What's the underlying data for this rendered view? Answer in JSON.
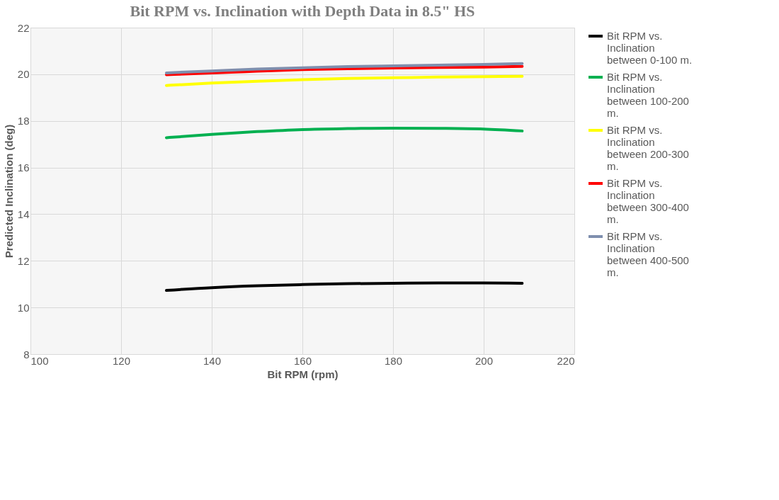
{
  "chart_data": {
    "type": "line",
    "title": "Bit RPM vs. Inclination with Depth Data in 8.5\" HS",
    "xlabel": "Bit RPM (rpm)",
    "ylabel": "Predicted Inclination (deg)",
    "x": [
      130,
      140,
      150,
      160,
      170,
      180,
      190,
      200,
      208.5
    ],
    "series": [
      {
        "name": "Bit RPM vs. Inclination between 0-100 m.",
        "color": "#000000",
        "values": [
          10.73,
          10.85,
          10.93,
          10.98,
          11.02,
          11.04,
          11.05,
          11.05,
          11.04
        ]
      },
      {
        "name": "Bit RPM vs. Inclination between 100-200 m.",
        "color": "#00b050",
        "values": [
          17.28,
          17.42,
          17.54,
          17.63,
          17.67,
          17.69,
          17.68,
          17.65,
          17.57
        ]
      },
      {
        "name": "Bit RPM vs. Inclination between 200-300 m.",
        "color": "#ffff00",
        "values": [
          19.52,
          19.62,
          19.7,
          19.77,
          19.82,
          19.85,
          19.88,
          19.9,
          19.91
        ]
      },
      {
        "name": "Bit RPM vs. Inclination between 300-400 m.",
        "color": "#ff0000",
        "values": [
          19.98,
          20.06,
          20.13,
          20.2,
          20.24,
          20.27,
          20.29,
          20.31,
          20.34
        ]
      },
      {
        "name": "Bit RPM vs. Inclination between 400-500 m.",
        "color": "#7f8fae",
        "values": [
          20.06,
          20.14,
          20.22,
          20.28,
          20.33,
          20.36,
          20.39,
          20.42,
          20.46
        ]
      }
    ],
    "xlim": [
      100,
      220
    ],
    "xticks": [
      100,
      120,
      140,
      160,
      180,
      200,
      220
    ],
    "ylim": [
      8,
      22
    ],
    "yticks": [
      8,
      10,
      12,
      14,
      16,
      18,
      20,
      22
    ],
    "grid": true,
    "legend": "right",
    "marker": "none",
    "line_style": "solid"
  }
}
